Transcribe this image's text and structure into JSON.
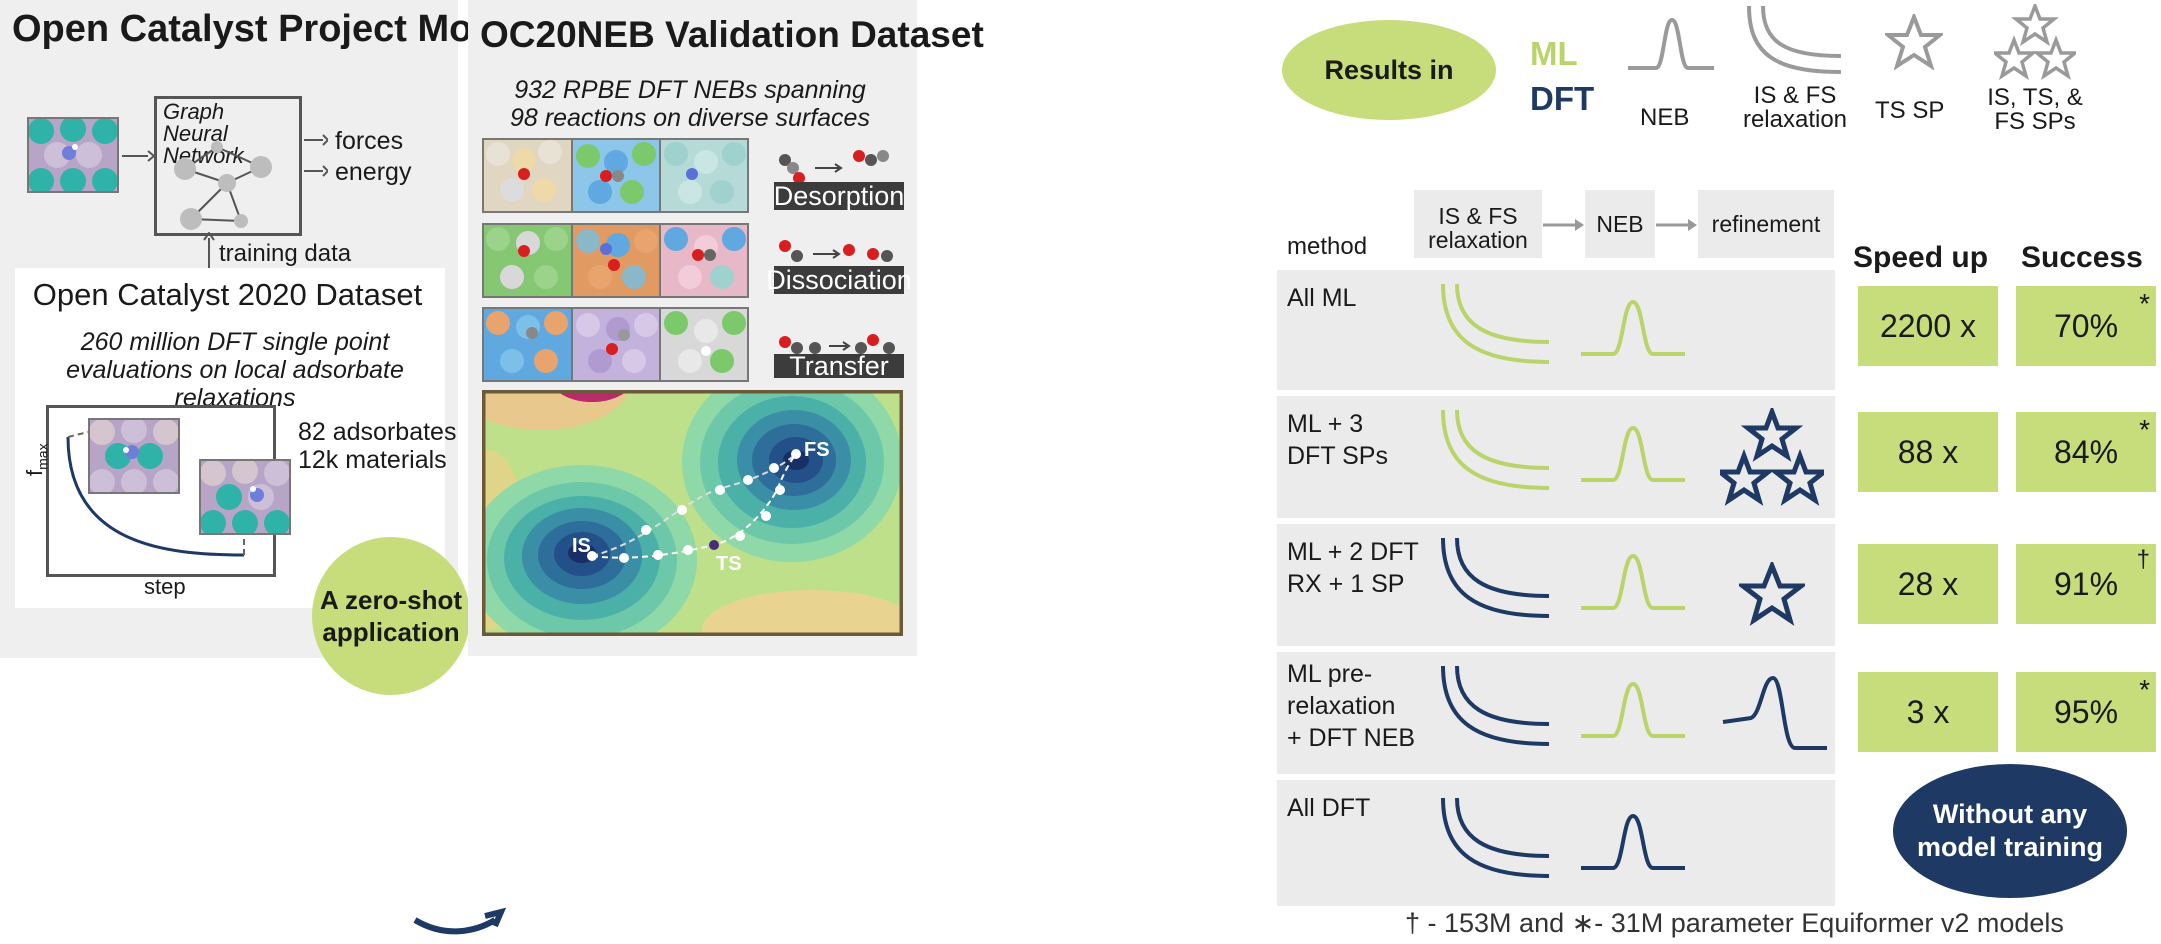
{
  "left": {
    "title": "Open Catalyst Project Models",
    "gnn_label": "Graph Neural Network",
    "outputs": [
      "forces",
      "energy"
    ],
    "training_data": "training data",
    "oc20_title": "Open Catalyst 2020 Dataset",
    "oc20_desc": "260 million DFT single point evaluations on local adsorbate relaxations",
    "stats": [
      "82 adsorbates",
      "12k materials"
    ],
    "plot_ylabel": "f",
    "plot_ylabel_sub": "max",
    "plot_xlabel": "step",
    "zero_shot": "A zero-shot application"
  },
  "middle": {
    "title": "OC20NEB Validation Dataset",
    "subtitle": "932 RPBE DFT NEBs spanning 98 reactions on diverse surfaces",
    "reactions": [
      "Desorption",
      "Dissociation",
      "Transfer"
    ],
    "landscape_labels": [
      "IS",
      "FS",
      "TS"
    ]
  },
  "right": {
    "results_in": "Results in",
    "legend_ml": "ML",
    "legend_dft": "DFT",
    "icon_labels": [
      "NEB",
      "IS & FS relaxation",
      "TS SP",
      "IS, TS, & FS SPs"
    ],
    "method_header": "method",
    "pipeline": [
      "IS & FS relaxation",
      "NEB",
      "refinement"
    ],
    "speed_header": "Speed up",
    "success_header": "Success",
    "rows": [
      {
        "label": "All ML",
        "speed": "2200 x",
        "success": "70%",
        "mark": "*"
      },
      {
        "label": "ML + 3\nDFT SPs",
        "speed": "88 x",
        "success": "84%",
        "mark": "*"
      },
      {
        "label": "ML + 2 DFT\nRX + 1 SP",
        "speed": "28 x",
        "success": "91%",
        "mark": "†"
      },
      {
        "label": "ML pre-\nrelaxation\n+ DFT NEB",
        "speed": "3 x",
        "success": "95%",
        "mark": "*"
      },
      {
        "label": "All DFT",
        "speed": "",
        "success": "",
        "mark": ""
      }
    ],
    "no_training": "Without any model training",
    "footnote": "† - 153M and ∗- 31M parameter Equiformer v2 models"
  },
  "colors": {
    "ml": "#b9d46a",
    "dft": "#1e3a64",
    "box": "#c7dd7c",
    "panel": "#efefef"
  }
}
